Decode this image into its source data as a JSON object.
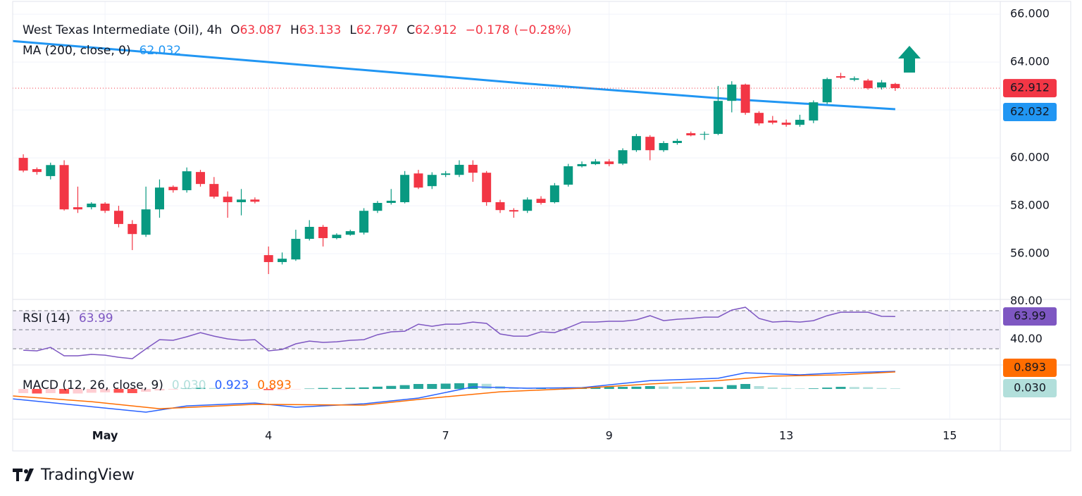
{
  "chart_data": [
    {
      "type": "candlestick",
      "title": "West Texas Intermediate (Oil), 4h",
      "legend_labels": {
        "open": "O",
        "high": "H",
        "low": "L",
        "close": "C"
      },
      "change": "−0.178",
      "change_pct": "(−0.28%)",
      "up_color": "#089981",
      "down_color": "#f23645",
      "categories": [
        null,
        null,
        null,
        null,
        null,
        null,
        null,
        null,
        null,
        null,
        null,
        null,
        null,
        null,
        null,
        null,
        null,
        null,
        null,
        null,
        null,
        null,
        null,
        null,
        null,
        null,
        null,
        null,
        null,
        null,
        null,
        null,
        null,
        null,
        null,
        null,
        null,
        null,
        null,
        null,
        null,
        null,
        null,
        null,
        null,
        null,
        null,
        null,
        null,
        null,
        null,
        null,
        null,
        null,
        null,
        null,
        null,
        null,
        null,
        null,
        null,
        null,
        null,
        null,
        null
      ],
      "open": [
        60.0,
        59.53,
        59.24,
        59.7,
        57.94,
        57.94,
        58.09,
        57.79,
        57.24,
        56.79,
        57.85,
        58.79,
        58.65,
        59.41,
        58.91,
        58.38,
        58.15,
        58.26,
        55.94,
        55.65,
        55.76,
        56.62,
        57.12,
        56.65,
        56.79,
        56.88,
        57.79,
        58.12,
        58.15,
        59.35,
        58.82,
        59.29,
        59.29,
        59.71,
        59.38,
        58.15,
        57.82,
        57.79,
        58.29,
        58.15,
        58.88,
        59.65,
        59.74,
        59.85,
        59.76,
        60.32,
        60.88,
        60.32,
        60.62,
        61.03,
        60.97,
        61.0,
        62.38,
        63.06,
        61.88,
        61.56,
        61.47,
        61.38,
        61.56,
        62.32,
        63.41,
        63.26,
        63.23,
        62.94,
        63.087
      ],
      "high": [
        60.15,
        59.6,
        59.8,
        59.9,
        58.8,
        58.15,
        58.15,
        58.0,
        57.4,
        58.8,
        59.1,
        58.85,
        59.6,
        59.5,
        59.2,
        58.6,
        58.7,
        58.35,
        56.3,
        56.05,
        57.0,
        57.4,
        57.2,
        56.85,
        57.0,
        57.9,
        58.2,
        58.7,
        59.45,
        59.5,
        59.4,
        59.45,
        59.9,
        59.9,
        59.45,
        58.25,
        57.9,
        58.35,
        58.4,
        58.95,
        59.75,
        59.85,
        59.95,
        59.95,
        60.4,
        61.0,
        60.95,
        60.7,
        60.8,
        61.1,
        61.1,
        63.0,
        63.2,
        63.1,
        61.95,
        61.75,
        61.6,
        61.8,
        62.4,
        63.35,
        63.55,
        63.4,
        63.3,
        63.25,
        63.133
      ],
      "low": [
        59.4,
        59.3,
        59.1,
        57.8,
        57.7,
        57.85,
        57.7,
        57.1,
        56.15,
        56.7,
        57.5,
        58.55,
        58.55,
        58.8,
        58.3,
        57.5,
        57.6,
        58.1,
        55.15,
        55.55,
        55.7,
        56.55,
        56.3,
        56.6,
        56.75,
        56.8,
        57.7,
        58.05,
        58.1,
        58.7,
        58.7,
        59.2,
        59.2,
        59.0,
        58.0,
        57.7,
        57.5,
        57.7,
        58.05,
        58.1,
        58.8,
        59.6,
        59.7,
        59.65,
        59.7,
        60.25,
        59.9,
        60.25,
        60.55,
        60.9,
        60.75,
        60.95,
        61.9,
        61.8,
        61.35,
        61.4,
        61.3,
        61.3,
        61.45,
        62.25,
        63.3,
        63.2,
        62.85,
        62.85,
        62.797
      ],
      "close": [
        59.47,
        59.41,
        59.7,
        57.85,
        57.85,
        58.09,
        57.79,
        57.24,
        56.82,
        57.85,
        58.76,
        58.65,
        59.44,
        58.91,
        58.38,
        58.15,
        58.26,
        58.17,
        55.65,
        55.79,
        56.62,
        57.12,
        56.65,
        56.79,
        56.94,
        57.79,
        58.12,
        58.21,
        59.29,
        58.76,
        59.29,
        59.35,
        59.71,
        59.38,
        58.15,
        57.82,
        57.76,
        58.26,
        58.12,
        58.85,
        59.65,
        59.74,
        59.85,
        59.74,
        60.32,
        60.91,
        60.32,
        60.62,
        60.71,
        60.94,
        61.0,
        62.38,
        63.06,
        61.88,
        61.44,
        61.47,
        61.38,
        61.59,
        62.32,
        63.29,
        63.35,
        63.32,
        62.91,
        63.15,
        62.912
      ],
      "overlays": [
        {
          "name": "MA (200, close, 0)",
          "color": "#2196f3",
          "x": [
            -0.78,
            18,
            37,
            52,
            64
          ],
          "values": [
            64.88,
            64.0,
            63.1,
            62.45,
            62.032
          ]
        }
      ],
      "xlim": [
        -0.78,
        71.71
      ],
      "xticks": [
        {
          "value": 6,
          "label": "May"
        },
        {
          "value": 18,
          "label": "4"
        },
        {
          "value": 31,
          "label": "7"
        },
        {
          "value": 43,
          "label": "9"
        },
        {
          "value": 56,
          "label": "13"
        },
        {
          "value": 68,
          "label": "15"
        }
      ],
      "ylim": [
        54.09,
        66.15
      ],
      "yticks": [
        {
          "value": 56,
          "label": "56.000"
        },
        {
          "value": 58,
          "label": "58.000"
        },
        {
          "value": 60,
          "label": "60.000"
        },
        {
          "value": 62,
          "label": "62.000"
        },
        {
          "value": 64,
          "label": "64.000"
        },
        {
          "value": 66,
          "label": "66.000"
        }
      ],
      "grid": true,
      "brand": "TradingView"
    },
    {
      "type": "line",
      "title": "RSI (14)",
      "series": [
        {
          "color": "#7e57c2",
          "values": [
            28.5,
            27.8,
            31.5,
            22.6,
            22.6,
            24.1,
            23.3,
            21.1,
            19.6,
            30.0,
            39.6,
            38.9,
            42.6,
            47.0,
            43.3,
            40.4,
            38.9,
            39.6,
            27.8,
            29.3,
            35.2,
            38.1,
            36.7,
            37.4,
            38.9,
            39.6,
            44.8,
            47.8,
            48.5,
            55.9,
            53.7,
            55.9,
            55.9,
            58.1,
            56.7,
            45.6,
            43.3,
            43.3,
            47.8,
            47.0,
            52.2,
            58.1,
            58.1,
            58.9,
            58.9,
            60.4,
            64.8,
            59.6,
            61.1,
            61.9,
            63.3,
            63.3,
            70.7,
            73.7,
            61.9,
            58.1,
            58.9,
            58.1,
            59.6,
            64.8,
            68.5,
            68.5,
            68.5,
            64.1,
            63.99
          ]
        }
      ],
      "bands": {
        "upper": 70,
        "middle": 50,
        "lower": 30
      },
      "ylim": [
        13,
        81.9
      ],
      "yticks": [
        {
          "value": 40,
          "label": "40.00"
        },
        {
          "value": 80,
          "label": "80.00"
        }
      ]
    },
    {
      "type": "macd",
      "title": "MACD (12, 26, close, 9)",
      "ylim": [
        -1.59,
        1.26
      ],
      "histogram": {
        "values": [
          -0.22,
          -0.24,
          -0.22,
          -0.25,
          -0.24,
          -0.2,
          -0.18,
          -0.2,
          -0.22,
          -0.15,
          -0.08,
          -0.03,
          0.02,
          0.06,
          0.05,
          0.03,
          0.01,
          0.0,
          -0.06,
          -0.05,
          -0.02,
          0.02,
          0.05,
          0.05,
          0.06,
          0.08,
          0.12,
          0.16,
          0.2,
          0.26,
          0.26,
          0.28,
          0.3,
          0.3,
          0.27,
          0.15,
          0.08,
          0.03,
          0.03,
          0.02,
          0.04,
          0.08,
          0.1,
          0.11,
          0.11,
          0.12,
          0.15,
          0.13,
          0.12,
          0.1,
          0.1,
          0.1,
          0.2,
          0.26,
          0.15,
          0.08,
          0.05,
          0.03,
          0.03,
          0.07,
          0.11,
          0.1,
          0.09,
          0.05,
          0.03
        ],
        "last_value_label": "0.030",
        "colors": {
          "grow_above": "#26a69a",
          "fall_above": "#b2dfdb",
          "grow_below": "#ffcdd2",
          "fall_below": "#ff5252"
        }
      },
      "macd": {
        "color": "#2962ff",
        "x": [
          -0.78,
          5,
          9,
          12,
          17,
          20,
          25,
          29,
          33,
          37,
          41,
          46,
          51,
          53,
          57,
          60,
          64
        ],
        "values": [
          -0.52,
          -0.93,
          -1.22,
          -0.89,
          -0.74,
          -0.96,
          -0.78,
          -0.48,
          0.11,
          0.04,
          0.07,
          0.44,
          0.56,
          0.85,
          0.74,
          0.85,
          0.923
        ]
      },
      "signal": {
        "color": "#ff6d00",
        "x": [
          -0.78,
          5,
          10,
          17,
          25,
          30,
          35,
          41,
          46,
          51,
          55,
          60,
          64
        ],
        "values": [
          -0.37,
          -0.67,
          -1.04,
          -0.81,
          -0.85,
          -0.48,
          -0.15,
          0.04,
          0.26,
          0.44,
          0.67,
          0.74,
          0.893
        ]
      }
    }
  ]
}
